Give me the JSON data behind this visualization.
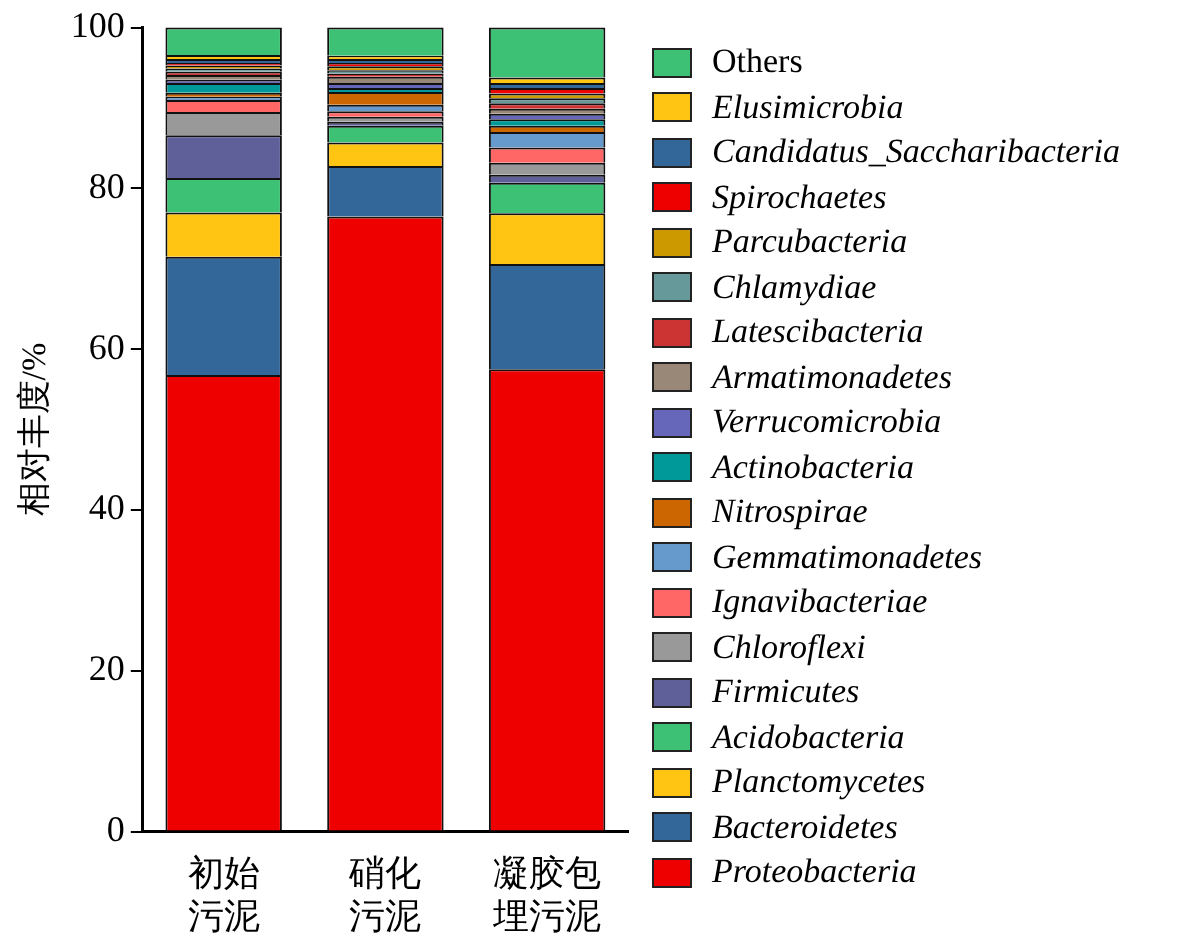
{
  "chart_data": {
    "type": "bar",
    "stacked": true,
    "ylabel": "相对丰度/%",
    "categories": [
      "初始污泥",
      "硝化污泥",
      "凝胶包埋污泥"
    ],
    "ylim": [
      0,
      100
    ],
    "yticks": [
      0,
      20,
      40,
      60,
      80,
      100
    ],
    "grid": false,
    "legend": "right",
    "series": [
      {
        "name": "Proteobacteria",
        "color": "#ee0000",
        "values": [
          56.8,
          76.5,
          57.5
        ]
      },
      {
        "name": "Bacteroidetes",
        "color": "#336699",
        "values": [
          14.7,
          6.3,
          13.1
        ]
      },
      {
        "name": "Planctomycetes",
        "color": "#ffc512",
        "values": [
          5.5,
          2.9,
          6.3
        ]
      },
      {
        "name": "Acidobacteria",
        "color": "#3dc275",
        "values": [
          4.3,
          2.1,
          3.8
        ]
      },
      {
        "name": "Firmicutes",
        "color": "#5f5f99",
        "values": [
          5.3,
          0.5,
          1.0
        ]
      },
      {
        "name": "Chloroflexi",
        "color": "#999999",
        "values": [
          2.9,
          0.6,
          1.5
        ]
      },
      {
        "name": "Ignavibacteriae",
        "color": "#ff6666",
        "values": [
          1.5,
          0.7,
          1.9
        ]
      },
      {
        "name": "Gemmatimonadetes",
        "color": "#6699cc",
        "values": [
          0.4,
          0.8,
          1.9
        ]
      },
      {
        "name": "Nitrospirae",
        "color": "#cc6600",
        "values": [
          0.5,
          1.6,
          0.8
        ]
      },
      {
        "name": "Actinobacteria",
        "color": "#009999",
        "values": [
          1.2,
          0.5,
          0.8
        ]
      },
      {
        "name": "Verrucomicrobia",
        "color": "#6666bb",
        "values": [
          0.4,
          0.6,
          0.7
        ]
      },
      {
        "name": "Armatimonadetes",
        "color": "#998877",
        "values": [
          0.6,
          0.8,
          0.6
        ]
      },
      {
        "name": "Latescibacteria",
        "color": "#cc3333",
        "values": [
          0.4,
          0.4,
          0.7
        ]
      },
      {
        "name": "Chlamydiae",
        "color": "#669999",
        "values": [
          0.4,
          0.4,
          0.6
        ]
      },
      {
        "name": "Parcubacteria",
        "color": "#cc9900",
        "values": [
          0.4,
          0.5,
          0.6
        ]
      },
      {
        "name": "Spirochaetes",
        "color": "#ee0000",
        "values": [
          0.3,
          0.4,
          0.7
        ]
      },
      {
        "name": "Candidatus_Saccharibacteria",
        "color": "#336699",
        "values": [
          0.5,
          0.5,
          0.6
        ]
      },
      {
        "name": "Elusimicrobia",
        "color": "#ffc512",
        "values": [
          0.5,
          0.4,
          0.7
        ]
      },
      {
        "name": "Others",
        "color": "#3dc275",
        "values": [
          3.4,
          3.5,
          6.2
        ]
      }
    ]
  }
}
